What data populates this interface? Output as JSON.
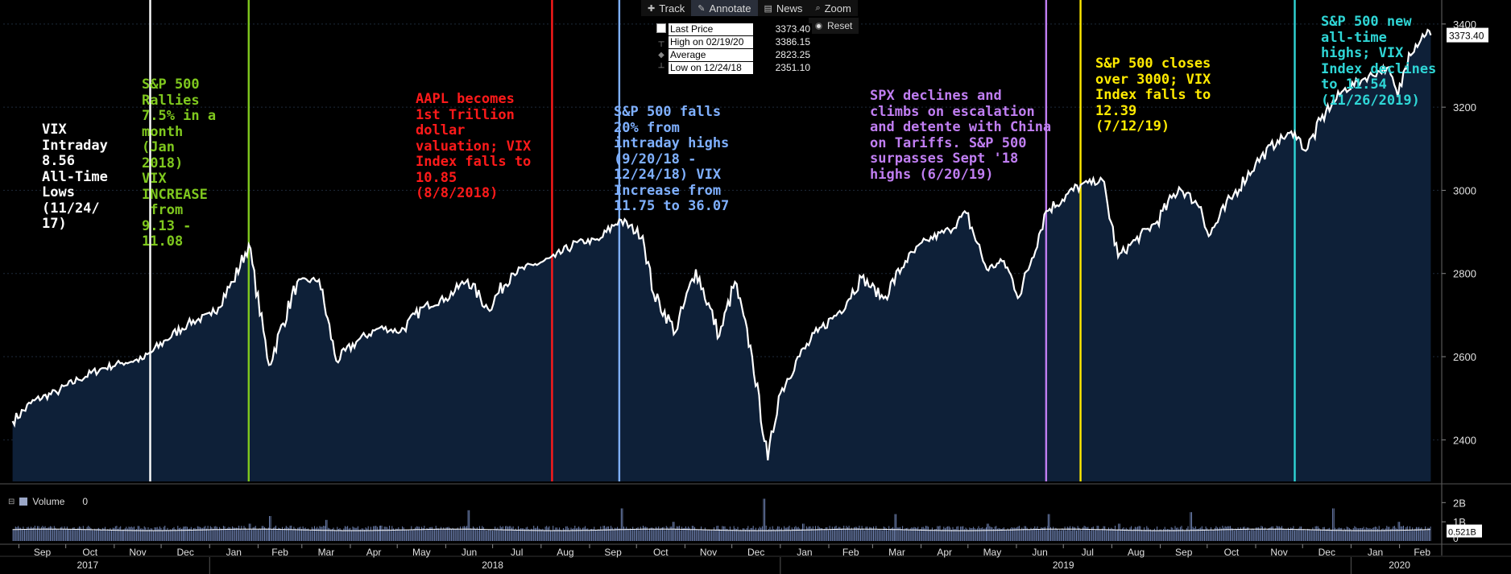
{
  "toolbar": {
    "track_label": "Track",
    "annotate_label": "Annotate",
    "news_label": "News",
    "zoom_label": "Zoom",
    "reset_label": "Reset"
  },
  "legend": {
    "rows": [
      {
        "label": "Last Price",
        "value": "3373.40"
      },
      {
        "label": "High on 02/19/20",
        "value": "3386.15"
      },
      {
        "label": "Average",
        "value": "2823.25"
      },
      {
        "label": "Low on 12/24/18",
        "value": "2351.10"
      }
    ],
    "last_price_tag": "3373.40"
  },
  "volume": {
    "label": "Volume",
    "value": "0",
    "last_tag": "0.521B",
    "zero_tag": "0"
  },
  "annotations": [
    {
      "text": "VIX\nIntraday\n8.56\nAll-Time\nLows\n(11/24/\n17)",
      "color": "#ffffff",
      "date": "2017-11-24"
    },
    {
      "text": "S&P 500\nRallies\n7.5% in a\nmonth\n(Jan\n2018)\nVIX\nINCREASE\n from\n9.13 -\n11.08",
      "color": "#7fc81e",
      "date": "2018-01-26"
    },
    {
      "text": "AAPL becomes\n1st Trillion\ndollar\nvaluation; VIX\nIndex falls to\n10.85\n(8/8/2018)",
      "color": "#ff1a1a",
      "date": "2018-08-08"
    },
    {
      "text": "S&P 500 falls\n20% from\nintraday highs\n(9/20/18 -\n12/24/18) VIX\nIncrease from\n11.75 to 36.07",
      "color": "#7fb0ff",
      "date": "2018-09-20"
    },
    {
      "text": "SPX declines and\nclimbs on escalation\nand detente with China\non Tariffs. S&P 500\nsurpasses Sept '18\nhighs (6/20/19)",
      "color": "#c07ef2",
      "date": "2019-06-20"
    },
    {
      "text": "S&P 500 closes\nover 3000; VIX\nIndex falls to\n12.39\n(7/12/19)",
      "color": "#ffea00",
      "date": "2019-07-12"
    },
    {
      "text": "S&P 500 new\nall-time\nhighs; VIX\nIndex declines\nto 11.54\n(11/26/2019)",
      "color": "#2fd6d6",
      "date": "2019-11-26"
    }
  ],
  "chart_data": {
    "type": "area",
    "title": "",
    "xlabel": "",
    "ylabel": "",
    "ylim": [
      2300,
      3450
    ],
    "y_ticks": [
      "2400",
      "2600",
      "2800",
      "3000",
      "3200",
      "3400"
    ],
    "x_month_labels": [
      "Sep",
      "Oct",
      "Nov",
      "Dec",
      "Jan",
      "Feb",
      "Mar",
      "Apr",
      "May",
      "Jun",
      "Jul",
      "Aug",
      "Sep",
      "Oct",
      "Nov",
      "Dec",
      "Jan",
      "Feb",
      "Mar",
      "Apr",
      "May",
      "Jun",
      "Jul",
      "Aug",
      "Sep",
      "Oct",
      "Nov",
      "Dec",
      "Jan",
      "Feb"
    ],
    "x_year_labels": [
      "2017",
      "2018",
      "2019",
      "2020"
    ],
    "series": [
      {
        "name": "Last Price",
        "x": [
          "2017-08-28",
          "2017-09-11",
          "2017-09-25",
          "2017-10-09",
          "2017-10-23",
          "2017-11-06",
          "2017-11-20",
          "2017-12-04",
          "2017-12-18",
          "2018-01-02",
          "2018-01-16",
          "2018-01-26",
          "2018-02-08",
          "2018-02-26",
          "2018-03-12",
          "2018-03-23",
          "2018-04-06",
          "2018-04-20",
          "2018-05-03",
          "2018-05-18",
          "2018-06-01",
          "2018-06-15",
          "2018-06-28",
          "2018-07-13",
          "2018-07-27",
          "2018-08-10",
          "2018-08-24",
          "2018-09-07",
          "2018-09-20",
          "2018-10-05",
          "2018-10-12",
          "2018-10-26",
          "2018-11-08",
          "2018-11-23",
          "2018-12-03",
          "2018-12-14",
          "2018-12-24",
          "2018-12-31",
          "2019-01-11",
          "2019-01-25",
          "2019-02-08",
          "2019-02-22",
          "2019-03-08",
          "2019-03-22",
          "2019-04-05",
          "2019-04-19",
          "2019-04-30",
          "2019-05-13",
          "2019-05-24",
          "2019-06-03",
          "2019-06-20",
          "2019-07-12",
          "2019-07-26",
          "2019-08-05",
          "2019-08-16",
          "2019-08-30",
          "2019-09-13",
          "2019-09-27",
          "2019-10-02",
          "2019-10-18",
          "2019-11-01",
          "2019-11-15",
          "2019-11-26",
          "2019-12-03",
          "2019-12-16",
          "2019-12-27",
          "2020-01-10",
          "2020-01-24",
          "2020-01-31",
          "2020-02-07",
          "2020-02-19",
          "2020-02-21"
        ],
        "y": [
          2445,
          2495,
          2515,
          2545,
          2570,
          2585,
          2595,
          2640,
          2680,
          2700,
          2780,
          2870,
          2580,
          2780,
          2785,
          2590,
          2640,
          2670,
          2660,
          2720,
          2740,
          2785,
          2715,
          2800,
          2820,
          2840,
          2875,
          2880,
          2930,
          2890,
          2750,
          2660,
          2810,
          2650,
          2780,
          2600,
          2351,
          2505,
          2590,
          2660,
          2710,
          2790,
          2740,
          2830,
          2880,
          2905,
          2945,
          2810,
          2830,
          2745,
          2950,
          3013,
          3025,
          2840,
          2880,
          2925,
          3007,
          2960,
          2890,
          2990,
          3065,
          3120,
          3140,
          3095,
          3190,
          3240,
          3270,
          3295,
          3225,
          3330,
          3386,
          3373
        ]
      },
      {
        "name": "Volume",
        "unit": "B",
        "x": [
          "2017-08-28",
          "2017-10-02",
          "2017-11-06",
          "2017-12-15",
          "2018-01-26",
          "2018-02-08",
          "2018-03-16",
          "2018-04-20",
          "2018-06-15",
          "2018-08-10",
          "2018-09-21",
          "2018-10-24",
          "2018-11-23",
          "2018-12-21",
          "2019-01-15",
          "2019-03-15",
          "2019-05-13",
          "2019-06-21",
          "2019-08-05",
          "2019-09-20",
          "2019-11-01",
          "2019-12-20",
          "2020-01-31",
          "2020-02-21"
        ],
        "y": [
          0.6,
          0.62,
          0.6,
          0.75,
          0.9,
          1.3,
          1.1,
          0.8,
          1.6,
          0.7,
          1.7,
          1.0,
          0.6,
          2.2,
          0.9,
          1.4,
          0.9,
          1.4,
          0.9,
          1.5,
          0.7,
          1.7,
          1.0,
          0.52
        ]
      }
    ]
  }
}
